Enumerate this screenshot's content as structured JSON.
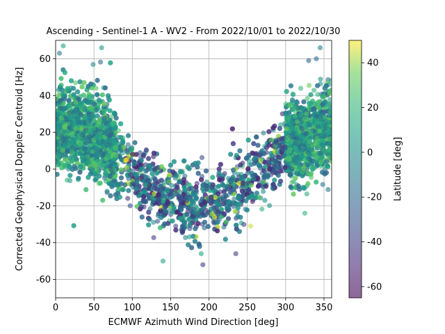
{
  "chart_data": {
    "type": "scatter",
    "title": "Ascending - Sentinel-1 A - WV2 - From 2022/10/01 to 2022/10/30",
    "xlabel": "ECMWF Azimuth Wind Direction [deg]",
    "ylabel": "Corrected Geophysical Doppler Centroid [Hz]",
    "xlim": [
      0,
      360
    ],
    "ylim": [
      -70,
      70
    ],
    "xticks": [
      0,
      50,
      100,
      150,
      200,
      250,
      300,
      350
    ],
    "yticks": [
      -60,
      -40,
      -20,
      0,
      20,
      40,
      60
    ],
    "grid": true,
    "colorbar": {
      "label": "Latitude [deg]",
      "range": [
        -65,
        50
      ],
      "ticks": [
        -60,
        -40,
        -20,
        0,
        20,
        40
      ],
      "colormap": "viridis",
      "alpha": 0.6
    },
    "trend_samples": {
      "x": [
        0,
        30,
        60,
        90,
        120,
        150,
        180,
        210,
        240,
        270,
        300,
        330,
        360
      ],
      "y_mean": [
        22,
        22,
        16,
        2,
        -12,
        -18,
        -20,
        -17,
        -10,
        0,
        12,
        18,
        22
      ]
    },
    "highlight_points": {
      "x": [
        10,
        60,
        140,
        192,
        235,
        325,
        345,
        340,
        330,
        15,
        5
      ],
      "y": [
        67,
        66,
        -50,
        -52,
        -46,
        -24,
        66,
        60,
        59,
        -6,
        63
      ],
      "lat": [
        10,
        5,
        10,
        -40,
        -40,
        20,
        -5,
        -20,
        -20,
        20,
        -10
      ]
    }
  }
}
